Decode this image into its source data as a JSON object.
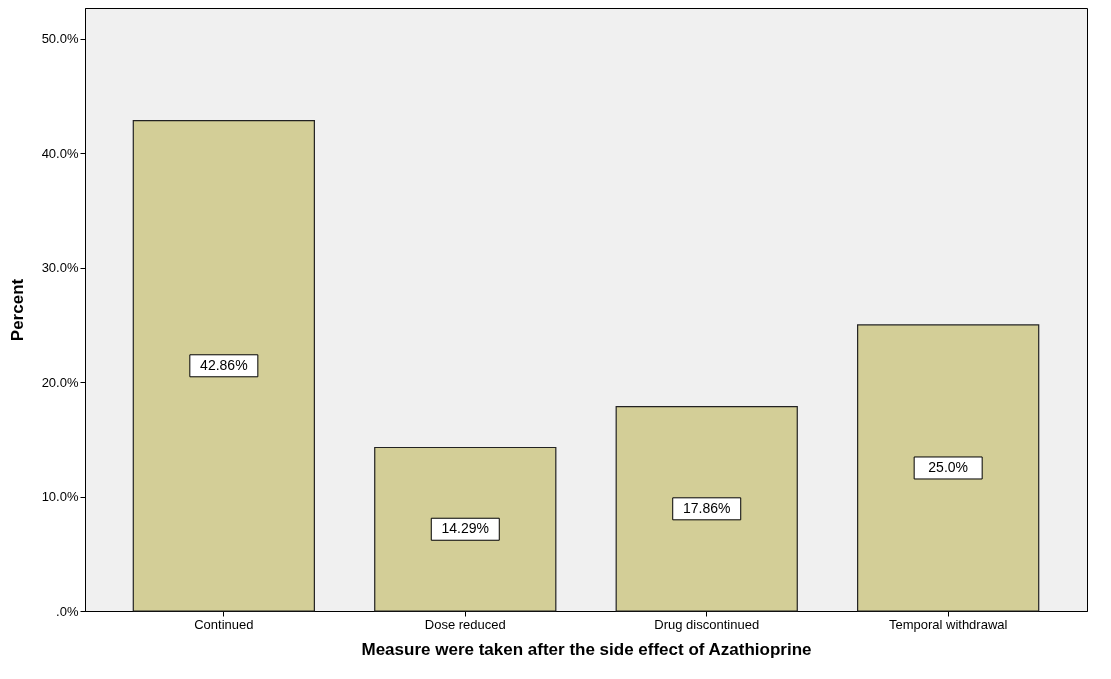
{
  "chart_data": {
    "type": "bar",
    "xlabel": "Measure were taken after the side effect  of Azathioprine",
    "ylabel": "Percent",
    "categories": [
      "Continued",
      "Dose reduced",
      "Drug discontinued",
      "Temporal withdrawal"
    ],
    "values": [
      42.86,
      14.29,
      17.86,
      25.0
    ],
    "value_labels": [
      "42.86%",
      "14.29%",
      "17.86%",
      "25.0%"
    ],
    "color": "#d3ce97",
    "ylim": [
      0,
      52.7
    ],
    "yticks": [
      {
        "value": 0,
        "label": ".0%"
      },
      {
        "value": 10,
        "label": "10.0%"
      },
      {
        "value": 20,
        "label": "20.0%"
      },
      {
        "value": 30,
        "label": "30.0%"
      },
      {
        "value": 40,
        "label": "40.0%"
      },
      {
        "value": 50,
        "label": "50.0%"
      }
    ],
    "grid": false
  }
}
